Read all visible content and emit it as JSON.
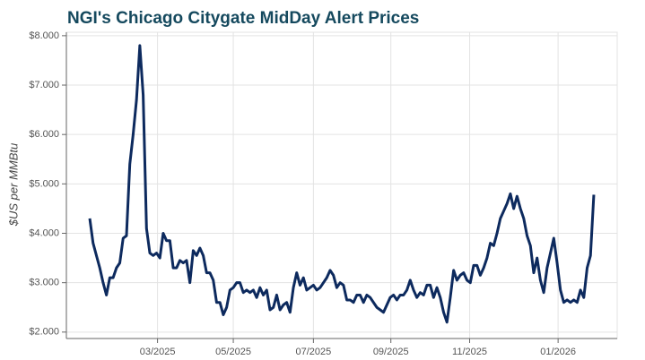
{
  "chart_data": {
    "type": "line",
    "title": "NGI's Chicago Citygate MidDay Alert Prices",
    "y_label": "$US per MMBtu",
    "grid": true,
    "xlim": [
      -7,
      158
    ],
    "xticks": [
      {
        "value": 20.3,
        "label": "03/2025"
      },
      {
        "value": 43,
        "label": "05/2025"
      },
      {
        "value": 67,
        "label": "07/2025"
      },
      {
        "value": 90.2,
        "label": "09/2025"
      },
      {
        "value": 113.8,
        "label": "11/2025"
      },
      {
        "value": 140.3,
        "label": "01/2026"
      }
    ],
    "ylim": [
      1.87,
      8.07
    ],
    "yticks": [
      {
        "value": 2,
        "label": "$2.000"
      },
      {
        "value": 3,
        "label": "$3.000"
      },
      {
        "value": 4,
        "label": "$4.000"
      },
      {
        "value": 5,
        "label": "$5.000"
      },
      {
        "value": 6,
        "label": "$6.000"
      },
      {
        "value": 7,
        "label": "$7.000"
      },
      {
        "value": 8,
        "label": "$8.000"
      }
    ],
    "series": [
      {
        "color": "#0d2a5e",
        "values": [
          4.3,
          3.8,
          3.55,
          3.3,
          3.0,
          2.75,
          3.1,
          3.1,
          3.3,
          3.4,
          3.9,
          3.95,
          5.4,
          6.0,
          6.7,
          7.8,
          6.8,
          4.1,
          3.6,
          3.55,
          3.6,
          3.5,
          4.0,
          3.85,
          3.85,
          3.3,
          3.3,
          3.45,
          3.4,
          3.45,
          3.0,
          3.65,
          3.55,
          3.7,
          3.55,
          3.2,
          3.2,
          3.05,
          2.6,
          2.6,
          2.35,
          2.5,
          2.85,
          2.9,
          3.0,
          3.0,
          2.8,
          2.85,
          2.8,
          2.85,
          2.7,
          2.9,
          2.75,
          2.85,
          2.45,
          2.5,
          2.75,
          2.45,
          2.55,
          2.6,
          2.4,
          2.9,
          3.2,
          2.95,
          3.1,
          2.85,
          2.9,
          2.95,
          2.85,
          2.9,
          3.0,
          3.1,
          3.25,
          3.15,
          2.9,
          3.0,
          2.95,
          2.65,
          2.65,
          2.6,
          2.75,
          2.75,
          2.6,
          2.75,
          2.7,
          2.6,
          2.5,
          2.45,
          2.4,
          2.55,
          2.7,
          2.75,
          2.65,
          2.75,
          2.75,
          2.85,
          3.05,
          2.85,
          2.7,
          2.8,
          2.75,
          2.95,
          2.95,
          2.7,
          2.9,
          2.7,
          2.4,
          2.2,
          2.7,
          3.25,
          3.05,
          3.15,
          3.2,
          3.05,
          3.0,
          3.35,
          3.35,
          3.15,
          3.3,
          3.5,
          3.8,
          3.75,
          4.0,
          4.3,
          4.45,
          4.6,
          4.8,
          4.5,
          4.75,
          4.5,
          4.3,
          3.95,
          3.75,
          3.2,
          3.5,
          3.05,
          2.8,
          3.3,
          3.6,
          3.9,
          3.4,
          2.85,
          2.6,
          2.65,
          2.6,
          2.65,
          2.6,
          2.85,
          2.7,
          3.3,
          3.55,
          4.78
        ]
      }
    ]
  }
}
